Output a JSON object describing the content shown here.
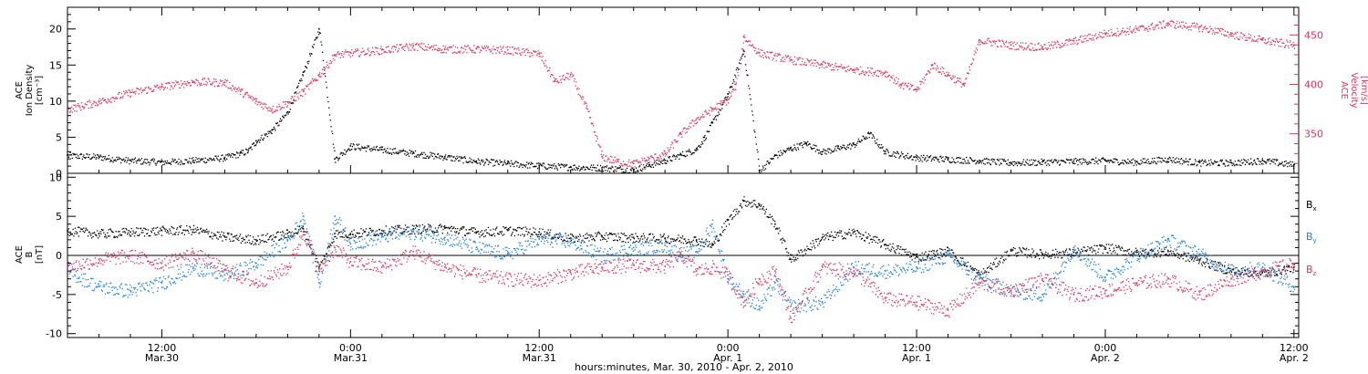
{
  "colors": {
    "black": "#000000",
    "pink": "#e0335a",
    "blue": "#1f7fe0"
  },
  "xaxis": {
    "title": "hours:minutes, Mar. 30, 2010 - Apr.  2, 2010",
    "tick_labels": [
      {
        "t": 12,
        "time": "12:00",
        "date": "Mar.30"
      },
      {
        "t": 24,
        "time": "0:00",
        "date": "Mar.31"
      },
      {
        "t": 36,
        "time": "12:00",
        "date": "Mar.31"
      },
      {
        "t": 48,
        "time": "0:00",
        "date": "Apr.  1"
      },
      {
        "t": 60,
        "time": "12:00",
        "date": "Apr.  1"
      },
      {
        "t": 72,
        "time": "0:00",
        "date": "Apr.  2"
      },
      {
        "t": 84,
        "time": "12:00",
        "date": "Apr.  2"
      }
    ]
  },
  "panel1": {
    "left_label": [
      "ACE",
      "Ion Density",
      "[cm⁻³]"
    ],
    "right_label": [
      "ACE",
      "Velocity",
      "[km/s]"
    ],
    "left_ticks": [
      "0",
      "5",
      "10",
      "15",
      "20"
    ],
    "right_ticks": [
      "350",
      "400",
      "450"
    ]
  },
  "panel2": {
    "left_label": [
      "ACE",
      "B",
      "[nT]"
    ],
    "left_ticks": [
      "-10",
      "-5",
      "0",
      "5",
      "10"
    ],
    "legend": [
      {
        "text": "B",
        "sub": "x",
        "color": "#000000"
      },
      {
        "text": "B",
        "sub": "y",
        "color": "#1f7fe0"
      },
      {
        "text": "B",
        "sub": "z",
        "color": "#e0335a"
      }
    ]
  },
  "chart_data": [
    {
      "type": "scatter",
      "title": "",
      "xlabel": "hours:minutes, Mar. 30, 2010 - Apr.  2, 2010",
      "x_units": "hours since Mar. 30, 2010 00:00 UT",
      "xlim": [
        6.0,
        84.3
      ],
      "ylim": [
        0,
        23
      ],
      "y2lim": [
        310,
        478
      ],
      "series": [
        {
          "name": "ACE Ion Density",
          "axis": "left",
          "color": "#000000",
          "x": [
            6,
            8,
            10,
            12,
            14,
            16,
            17,
            17.5,
            18,
            19,
            20,
            21,
            22,
            23,
            24,
            26,
            28,
            30,
            32,
            34,
            36,
            38,
            40,
            42,
            43,
            44,
            45,
            46,
            46.5,
            47,
            48,
            49,
            50,
            51,
            52,
            53,
            54,
            55,
            56,
            57,
            58,
            60,
            62,
            64,
            66,
            68,
            70,
            72,
            74,
            76,
            78,
            80,
            82,
            84
          ],
          "y": [
            2.5,
            2.3,
            1.8,
            1.6,
            1.8,
            2.2,
            2.8,
            3.2,
            4.5,
            6,
            8.5,
            14,
            20,
            2,
            3.8,
            3.3,
            2.8,
            2.3,
            1.7,
            1.4,
            1.1,
            0.9,
            0.8,
            0.5,
            1.2,
            1.8,
            2.6,
            3.4,
            5,
            7,
            11,
            17,
            0.4,
            2.5,
            3.5,
            4.2,
            3,
            3.5,
            4,
            5.5,
            3,
            2.2,
            2,
            1.8,
            1.5,
            1.6,
            1.7,
            1.8,
            1.6,
            2,
            1.5,
            1.5,
            1.8,
            1.2
          ]
        },
        {
          "name": "ACE Velocity",
          "axis": "right",
          "color": "#e0335a",
          "x": [
            6,
            8,
            10,
            12,
            14,
            16,
            17,
            18,
            19,
            20,
            21,
            22,
            23,
            24,
            26,
            28,
            30,
            32,
            34,
            36,
            37,
            38,
            39,
            40,
            41,
            42,
            43,
            44,
            45,
            46,
            47,
            48,
            48.5,
            49,
            50,
            52,
            54,
            56,
            58,
            59,
            60,
            61,
            62,
            63,
            64,
            66,
            68,
            70,
            72,
            74,
            76,
            78,
            80,
            82,
            84
          ],
          "y": [
            375,
            383,
            392,
            398,
            403,
            402,
            393,
            383,
            375,
            382,
            393,
            410,
            430,
            432,
            435,
            439,
            436,
            436,
            435,
            431,
            403,
            410,
            376,
            327,
            322,
            320,
            325,
            330,
            350,
            365,
            375,
            385,
            400,
            448,
            432,
            425,
            420,
            415,
            412,
            400,
            395,
            420,
            410,
            400,
            445,
            440,
            438,
            444,
            452,
            456,
            462,
            458,
            451,
            445,
            440
          ]
        }
      ]
    },
    {
      "type": "scatter",
      "title": "",
      "xlabel": "hours:minutes, Mar. 30, 2010 - Apr.  2, 2010",
      "x_units": "hours since Mar. 30, 2010 00:00 UT",
      "xlim": [
        6.0,
        84.3
      ],
      "ylim": [
        -10.5,
        10.5
      ],
      "series": [
        {
          "name": "Bx",
          "color": "#000000",
          "x": [
            6,
            8,
            10,
            12,
            14,
            16,
            18,
            20,
            21,
            22,
            23,
            24,
            26,
            28,
            30,
            32,
            34,
            36,
            38,
            40,
            42,
            44,
            46,
            47,
            48,
            49,
            50,
            51,
            52,
            54,
            56,
            58,
            60,
            62,
            64,
            66,
            68,
            70,
            72,
            74,
            76,
            78,
            80,
            82,
            84
          ],
          "y": [
            3.2,
            2.8,
            3,
            3.2,
            3.3,
            2.4,
            2,
            2.8,
            3.4,
            -1.5,
            2.8,
            2.8,
            3.2,
            3.4,
            3.5,
            3,
            3.2,
            3,
            2.2,
            2.5,
            2.3,
            2.2,
            2,
            1.3,
            4.5,
            7,
            6.5,
            4,
            -0.5,
            2.3,
            3,
            1.4,
            -0.2,
            0.6,
            -2.5,
            0.6,
            0.2,
            0.4,
            1,
            0.4,
            0.5,
            -0.6,
            -2,
            -2.2,
            -1.5
          ]
        },
        {
          "name": "By",
          "color": "#1f7fe0",
          "x": [
            6,
            8,
            10,
            12,
            14,
            16,
            18,
            20,
            21,
            22,
            23,
            24,
            26,
            28,
            30,
            32,
            34,
            36,
            38,
            40,
            42,
            44,
            45,
            46,
            47,
            48,
            49,
            50,
            51,
            52,
            54,
            56,
            58,
            60,
            62,
            64,
            66,
            68,
            70,
            72,
            74,
            76,
            78,
            80,
            82,
            84
          ],
          "y": [
            -2,
            -4,
            -4.5,
            -3.5,
            -1.5,
            -2.5,
            -1,
            2,
            5,
            -3.5,
            5,
            1.5,
            2.5,
            3,
            2.3,
            1,
            0.2,
            2.1,
            1.8,
            0,
            1,
            1.3,
            0.2,
            0.5,
            4,
            -3,
            -5,
            -6.5,
            -3.5,
            -6.5,
            -6,
            -1.5,
            -2,
            -1.5,
            0,
            -3,
            -4.5,
            -5,
            1,
            -2.8,
            0,
            2,
            0.2,
            -2,
            -1.5,
            -4
          ]
        },
        {
          "name": "Bz",
          "color": "#e0335a",
          "x": [
            6,
            8,
            10,
            12,
            14,
            16,
            18,
            20,
            21,
            22,
            23,
            24,
            26,
            28,
            30,
            32,
            34,
            36,
            38,
            40,
            42,
            44,
            45,
            46,
            47,
            48,
            49,
            50,
            51,
            52,
            54,
            56,
            58,
            60,
            62,
            64,
            66,
            68,
            70,
            72,
            74,
            76,
            78,
            80,
            82,
            84
          ],
          "y": [
            -1.5,
            -0.5,
            0,
            -1,
            0.3,
            -1.8,
            -3.5,
            -1.5,
            3,
            -2,
            1,
            -0.8,
            -1.5,
            0.5,
            -1.5,
            -2.5,
            -3,
            -3.2,
            -2.2,
            -1.5,
            -1.2,
            -1.4,
            0.2,
            -2,
            -1.5,
            -2.5,
            -6,
            -3,
            -2,
            -8,
            -1.5,
            -2,
            -5.5,
            -6,
            -7,
            -3.5,
            -4.5,
            -3,
            -5,
            -4.5,
            -3.5,
            -3,
            -5,
            -3,
            -2,
            -1
          ]
        }
      ]
    }
  ]
}
